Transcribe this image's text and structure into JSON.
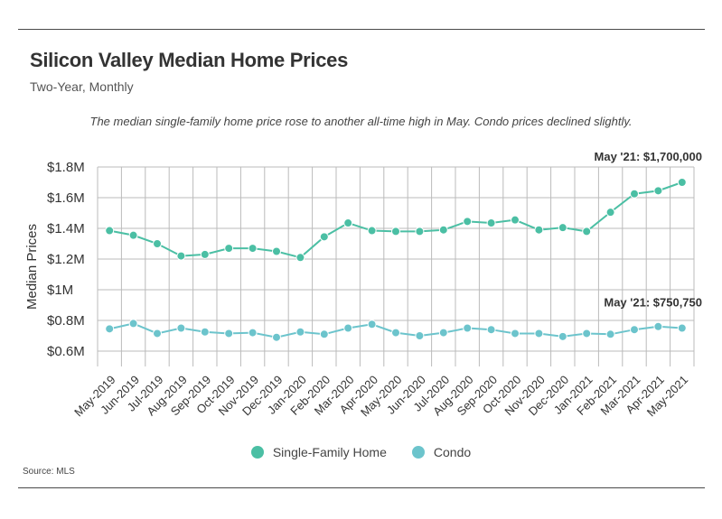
{
  "title": "Silicon Valley Median Home Prices",
  "subtitle": "Two-Year, Monthly",
  "note": "The median single-family home price rose to another all-time high in May. Condo prices declined slightly.",
  "source": "Source:  MLS",
  "colors": {
    "single_family": "#4bbfa4",
    "condo": "#6cc4cc",
    "grid": "#bbbbbb",
    "text": "#333333"
  },
  "chart_data": {
    "type": "line",
    "ylabel": "Median Prices",
    "xlabel": "",
    "ylim": [
      0.5,
      1.8
    ],
    "y_ticks": [
      0.6,
      0.8,
      1.0,
      1.2,
      1.4,
      1.6,
      1.8
    ],
    "y_tick_labels": [
      "$0.6M",
      "$0.8M",
      "$1M",
      "$1.2M",
      "$1.4M",
      "$1.6M",
      "$1.8M"
    ],
    "categories": [
      "May-2019",
      "Jun-2019",
      "Jul-2019",
      "Aug-2019",
      "Sep-2019",
      "Oct-2019",
      "Nov-2019",
      "Dec-2019",
      "Jan-2020",
      "Feb-2020",
      "Mar-2020",
      "Apr-2020",
      "May-2020",
      "Jun-2020",
      "Jul-2020",
      "Aug-2020",
      "Sep-2020",
      "Oct-2020",
      "Nov-2020",
      "Dec-2020",
      "Jan-2021",
      "Feb-2021",
      "Mar-2021",
      "Apr-2021",
      "May-2021"
    ],
    "series": [
      {
        "name": "Single-Family Home",
        "color": "#4bbfa4",
        "values": [
          1.385,
          1.355,
          1.3,
          1.22,
          1.23,
          1.27,
          1.27,
          1.25,
          1.21,
          1.345,
          1.435,
          1.385,
          1.38,
          1.38,
          1.39,
          1.445,
          1.435,
          1.455,
          1.39,
          1.405,
          1.38,
          1.505,
          1.625,
          1.645,
          1.7
        ]
      },
      {
        "name": "Condo",
        "color": "#6cc4cc",
        "values": [
          0.745,
          0.78,
          0.715,
          0.75,
          0.725,
          0.715,
          0.72,
          0.69,
          0.725,
          0.71,
          0.75,
          0.775,
          0.72,
          0.7,
          0.72,
          0.75,
          0.74,
          0.715,
          0.715,
          0.695,
          0.715,
          0.71,
          0.74,
          0.76,
          0.75
        ]
      }
    ],
    "annotations": [
      {
        "text": "May '21: $1,700,000",
        "series": 0
      },
      {
        "text": "May '21: $750,750",
        "series": 1
      }
    ],
    "legend": "bottom-center",
    "grid": true
  }
}
